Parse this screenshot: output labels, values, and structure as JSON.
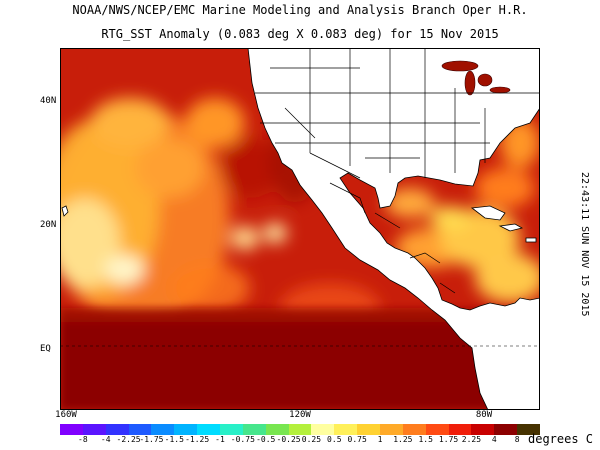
{
  "header": {
    "line1": "NOAA/NWS/NCEP/EMC Marine Modeling and Analysis Branch Oper H.R.",
    "line2": "RTG_SST Anomaly (0.083 deg X 0.083 deg) for 15 Nov 2015"
  },
  "timestamp": "22:43:11  SUN NOV 15 2015",
  "axes": {
    "lat_labels": [
      "40N",
      "20N",
      "EQ"
    ],
    "lon_labels": [
      "160W",
      "120W",
      "80W"
    ]
  },
  "colorbar": {
    "unit_label": "degrees C",
    "ticks": [
      "-8",
      "-4",
      "-2.25",
      "-1.75",
      "-1.5",
      "-1.25",
      "-1",
      "-0.75",
      "-0.5",
      "-0.25",
      "0.25",
      "0.5",
      "0.75",
      "1",
      "1.25",
      "1.5",
      "1.75",
      "2.25",
      "4",
      "8"
    ],
    "colors": [
      "#8000ff",
      "#5a14ff",
      "#3232ff",
      "#1e5aff",
      "#0a8cff",
      "#00b4ff",
      "#00dcff",
      "#28f0c8",
      "#46e68c",
      "#78e650",
      "#b4f03c",
      "#ffffa0",
      "#fff05a",
      "#ffd232",
      "#ffaa28",
      "#ff7d1e",
      "#ff4b14",
      "#f01e0a",
      "#c80000",
      "#8c0000",
      "#463200"
    ]
  },
  "map_colors": {
    "ocean_base": "#c81e0a",
    "hot_band": "#8c0000",
    "warm": "#ff7d1e",
    "mild": "#ffd232",
    "land": "#ffffff",
    "borders": "#000000"
  }
}
